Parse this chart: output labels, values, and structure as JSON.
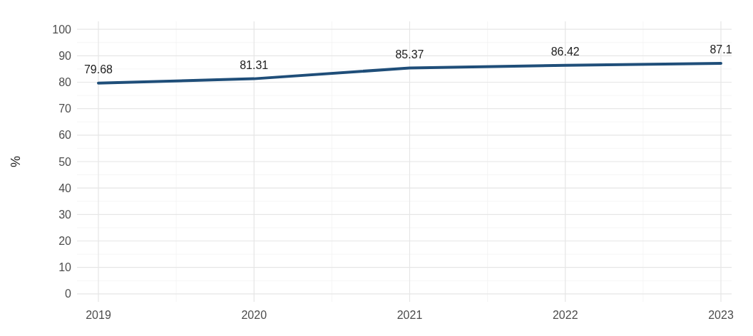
{
  "chart_data": {
    "type": "line",
    "ylabel": "%",
    "x": [
      2019,
      2020,
      2021,
      2022,
      2023
    ],
    "series": [
      {
        "color": "#1f4e79",
        "values": [
          79.68,
          81.31,
          85.37,
          86.42,
          87.1
        ]
      }
    ],
    "xlim": [
      2019,
      2023
    ],
    "xticks": [
      2019,
      2020,
      2021,
      2022,
      2023
    ],
    "ylim": [
      -3,
      103
    ],
    "yticks": [
      0,
      10,
      20,
      30,
      40,
      50,
      60,
      70,
      80,
      90,
      100
    ],
    "grid": true,
    "data_labels": true,
    "marker": "none",
    "line_style": "solid"
  }
}
